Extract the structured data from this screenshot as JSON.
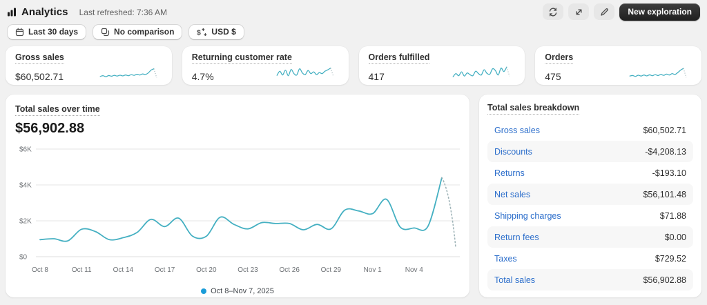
{
  "header": {
    "title": "Analytics",
    "last_refreshed": "Last refreshed: 7:36 AM",
    "new_exploration_label": "New exploration",
    "action_icons": [
      "refresh-icon",
      "expand-icon",
      "edit-icon"
    ]
  },
  "filters": {
    "date_range": "Last 30 days",
    "comparison": "No comparison",
    "currency": "USD $"
  },
  "metrics": [
    {
      "label": "Gross sales",
      "value": "$60,502.71",
      "spark": [
        22,
        26,
        20,
        27,
        23,
        28,
        24,
        29,
        25,
        30,
        26,
        32,
        28,
        34,
        30,
        36,
        33,
        42,
        58,
        66,
        14
      ]
    },
    {
      "label": "Returning customer rate",
      "value": "4.7%",
      "spark": [
        28,
        52,
        30,
        58,
        26,
        62,
        38,
        30,
        66,
        42,
        32,
        56,
        38,
        48,
        32,
        44,
        38,
        52,
        60,
        70,
        22
      ]
    },
    {
      "label": "Orders fulfilled",
      "value": "417",
      "spark": [
        20,
        38,
        26,
        48,
        24,
        42,
        32,
        26,
        52,
        38,
        30,
        60,
        40,
        34,
        66,
        56,
        30,
        70,
        50,
        76,
        24
      ]
    },
    {
      "label": "Orders",
      "value": "475",
      "spark": [
        24,
        27,
        22,
        29,
        24,
        30,
        25,
        31,
        26,
        32,
        27,
        33,
        28,
        35,
        30,
        38,
        33,
        44,
        58,
        68,
        16
      ]
    }
  ],
  "main_chart": {
    "title": "Total sales over time",
    "value": "$56,902.88",
    "legend_label": "Oct 8–Nov 7, 2025"
  },
  "chart_data": {
    "type": "line",
    "title": "Total sales over time",
    "x": [
      "Oct 8",
      "Oct 9",
      "Oct 10",
      "Oct 11",
      "Oct 12",
      "Oct 13",
      "Oct 14",
      "Oct 15",
      "Oct 16",
      "Oct 17",
      "Oct 18",
      "Oct 19",
      "Oct 20",
      "Oct 21",
      "Oct 22",
      "Oct 23",
      "Oct 24",
      "Oct 25",
      "Oct 26",
      "Oct 27",
      "Oct 28",
      "Oct 29",
      "Oct 30",
      "Oct 31",
      "Nov 1",
      "Nov 2",
      "Nov 3",
      "Nov 4",
      "Nov 5",
      "Nov 6",
      "Nov 7"
    ],
    "values": [
      950,
      1000,
      880,
      1530,
      1400,
      950,
      1060,
      1350,
      2080,
      1680,
      2150,
      1150,
      1140,
      2200,
      1800,
      1550,
      1900,
      1850,
      1850,
      1500,
      1800,
      1550,
      2600,
      2550,
      2400,
      3200,
      1650,
      1600,
      1700,
      4400,
      520
    ],
    "solid_until_index": 29,
    "ylim": [
      0,
      6000
    ],
    "yticks": [
      0,
      2000,
      4000,
      6000
    ],
    "ytick_labels": [
      "$0",
      "$2K",
      "$4K",
      "$6K"
    ],
    "xtick_indices": [
      0,
      3,
      6,
      9,
      12,
      15,
      18,
      21,
      24,
      27
    ],
    "xtick_labels": [
      "Oct 8",
      "Oct 11",
      "Oct 14",
      "Oct 17",
      "Oct 20",
      "Oct 23",
      "Oct 26",
      "Oct 29",
      "Nov 1",
      "Nov 4"
    ],
    "legend": "Oct 8–Nov 7, 2025",
    "grid": true,
    "legend_position": "bottom-center"
  },
  "breakdown": {
    "title": "Total sales breakdown",
    "rows": [
      {
        "label": "Gross sales",
        "value": "$60,502.71"
      },
      {
        "label": "Discounts",
        "value": "-$4,208.13"
      },
      {
        "label": "Returns",
        "value": "-$193.10"
      },
      {
        "label": "Net sales",
        "value": "$56,101.48"
      },
      {
        "label": "Shipping charges",
        "value": "$71.88"
      },
      {
        "label": "Return fees",
        "value": "$0.00"
      },
      {
        "label": "Taxes",
        "value": "$729.52"
      },
      {
        "label": "Total sales",
        "value": "$56,902.88"
      }
    ]
  },
  "colors": {
    "line": "#45b0c2",
    "projection": "#9fb4b8",
    "legend_dot": "#1a9cd8",
    "link": "#2c6ecb",
    "grid_line": "#e6e6e6",
    "axis_text": "#6d7175",
    "page_bg": "#f1f1f1"
  }
}
